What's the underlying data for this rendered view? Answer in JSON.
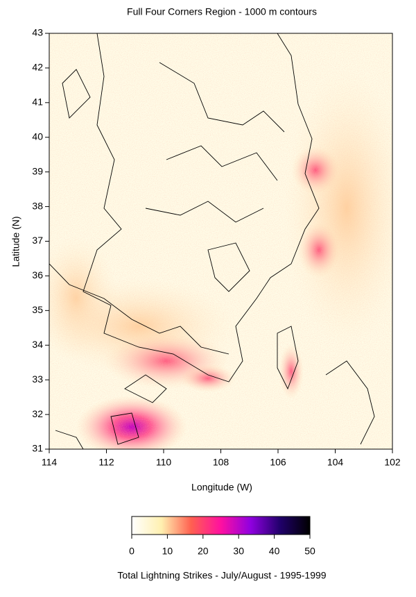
{
  "chart_data": {
    "type": "heatmap",
    "title": "Full Four Corners Region - 1000 m contours",
    "xlabel": "Longitude (W)",
    "ylabel": "Latitude (N)",
    "xlim": [
      114,
      102
    ],
    "xticks": [
      114,
      112,
      110,
      108,
      106,
      104,
      102
    ],
    "ylim": [
      31,
      43
    ],
    "yticks": [
      31,
      32,
      33,
      34,
      35,
      36,
      37,
      38,
      39,
      40,
      41,
      42,
      43
    ],
    "colorbar": {
      "label": "Total Lightning Strikes - July/August - 1995-1999",
      "lim": [
        0,
        50
      ],
      "ticks": [
        0,
        10,
        20,
        30,
        40,
        50
      ],
      "colors": [
        "#ffffff",
        "#fff0b0",
        "#ff6050",
        "#ff10a0",
        "#9000e0",
        "#20006a",
        "#000000"
      ]
    }
  }
}
